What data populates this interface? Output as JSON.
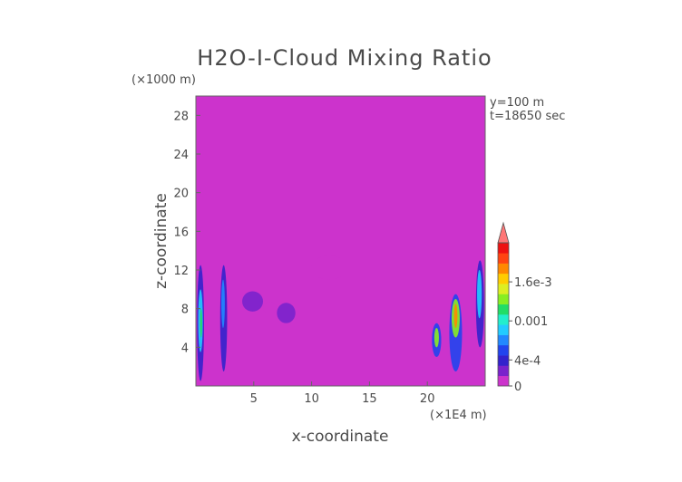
{
  "chart_data": {
    "type": "heatmap",
    "title": "H2O-I-Cloud Mixing Ratio",
    "xlabel": "x-coordinate",
    "ylabel": "z-coordinate",
    "x_scale_label": "(×1E4 m)",
    "y_scale_label": "(×1000 m)",
    "annotations": [
      "y=100 m",
      "t=18650 sec"
    ],
    "xlim": [
      0,
      25
    ],
    "ylim": [
      0,
      30
    ],
    "x_ticks": [
      5,
      10,
      15,
      20
    ],
    "x_tick_labels": [
      "5",
      "10",
      "15",
      "20"
    ],
    "y_ticks": [
      4,
      8,
      12,
      16,
      20,
      24,
      28
    ],
    "y_tick_labels": [
      "4",
      "8",
      "12",
      "16",
      "20",
      "24",
      "28"
    ],
    "background_color": "#cc33cc",
    "colorbar": {
      "range": [
        0,
        0.0022
      ],
      "extend": "max",
      "tick_values": [
        0,
        0.0004,
        0.001,
        0.0016
      ],
      "tick_labels": [
        "0",
        "4e-4",
        "0.001",
        "1.6e-3"
      ],
      "colors": [
        "#cc33cc",
        "#7a22cc",
        "#3322cc",
        "#2244ee",
        "#2288ff",
        "#22ccff",
        "#22eecc",
        "#22dd66",
        "#88ee22",
        "#ddee22",
        "#ffcc00",
        "#ff8800",
        "#ff4411",
        "#ee1111"
      ],
      "extend_color": "#ff7777"
    },
    "regions": [
      {
        "x": [
          0.1,
          0.7
        ],
        "z": [
          0.5,
          12.5
        ],
        "value": 0.0004
      },
      {
        "x": [
          0.2,
          0.6
        ],
        "z": [
          3.5,
          10
        ],
        "value": 0.0008
      },
      {
        "x": [
          0.35,
          0.55
        ],
        "z": [
          5,
          8
        ],
        "value": 0.0011
      },
      {
        "x": [
          2.1,
          2.7
        ],
        "z": [
          1.5,
          12.5
        ],
        "value": 0.0004
      },
      {
        "x": [
          2.2,
          2.5
        ],
        "z": [
          6,
          11
        ],
        "value": 0.0007
      },
      {
        "x": [
          4,
          5.8
        ],
        "z": [
          7.7,
          9.8
        ],
        "value": 0.0002
      },
      {
        "x": [
          5.8,
          7
        ],
        "z": [
          7.5,
          8.7
        ],
        "value": 0.0001
      },
      {
        "x": [
          7,
          8.6
        ],
        "z": [
          6.5,
          8.6
        ],
        "value": 0.0002
      },
      {
        "x": [
          10,
          13
        ],
        "z": [
          11,
          13.5
        ],
        "value": 5e-05
      },
      {
        "x": [
          20.4,
          21.2
        ],
        "z": [
          3,
          6.5
        ],
        "value": 0.0006
      },
      {
        "x": [
          20.6,
          21
        ],
        "z": [
          4,
          6
        ],
        "value": 0.0014
      },
      {
        "x": [
          21.9,
          23
        ],
        "z": [
          1.5,
          9.5
        ],
        "value": 0.0005
      },
      {
        "x": [
          22.1,
          22.8
        ],
        "z": [
          5,
          9
        ],
        "value": 0.0013
      },
      {
        "x": [
          22.3,
          22.6
        ],
        "z": [
          6,
          8.5
        ],
        "value": 0.0018
      },
      {
        "x": [
          24.2,
          24.9
        ],
        "z": [
          4,
          13
        ],
        "value": 0.0004
      },
      {
        "x": [
          24.3,
          24.7
        ],
        "z": [
          7,
          12
        ],
        "value": 0.0009
      }
    ]
  }
}
